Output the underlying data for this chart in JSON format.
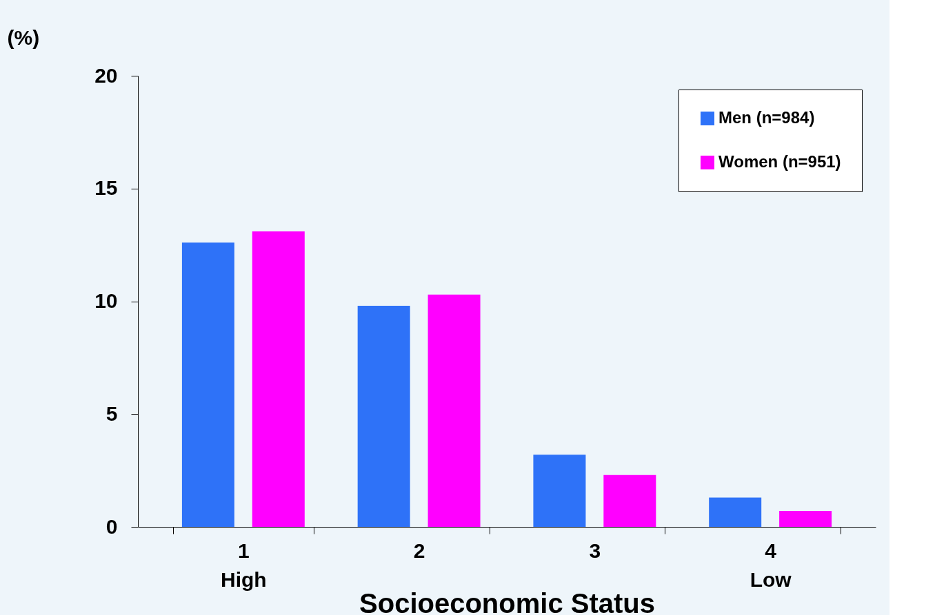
{
  "chart_data": {
    "type": "bar",
    "xlabel": "Socioeconomic Status",
    "ylabel": "(%)",
    "categories": [
      "1\nHigh",
      "2",
      "3",
      "4\nLow"
    ],
    "series": [
      {
        "name": "Men (n=984)",
        "color": "#2e72f8",
        "values": [
          12.6,
          9.8,
          3.2,
          1.3
        ]
      },
      {
        "name": "Women (n=951)",
        "color": "#ff00ff",
        "values": [
          13.1,
          10.3,
          2.3,
          0.7
        ]
      }
    ],
    "ylim": [
      0,
      20
    ],
    "yticks": [
      0,
      5,
      10,
      15,
      20
    ],
    "grid": false,
    "legend": "top right"
  }
}
